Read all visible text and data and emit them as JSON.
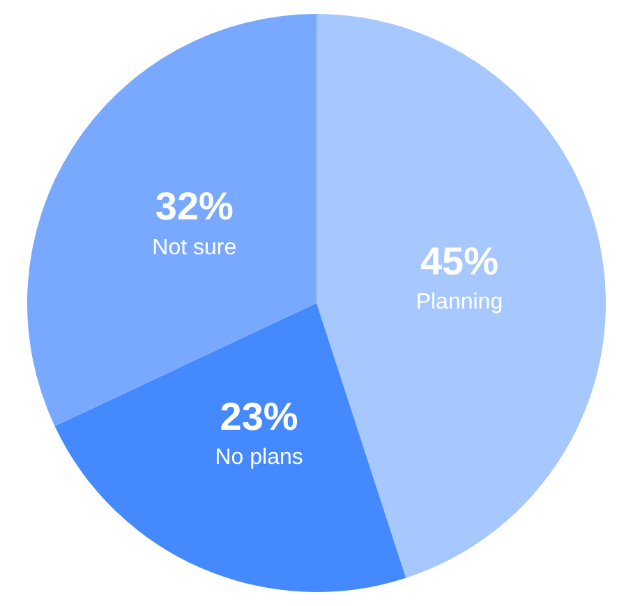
{
  "chart_data": {
    "type": "pie",
    "categories": [
      "Planning",
      "No plans",
      "Not sure"
    ],
    "values": [
      45,
      23,
      32
    ],
    "value_labels": [
      "45%",
      "23%",
      "32%"
    ],
    "colors": [
      "#a6c8ff",
      "#4589ff",
      "#78a9ff"
    ],
    "legend": false
  }
}
